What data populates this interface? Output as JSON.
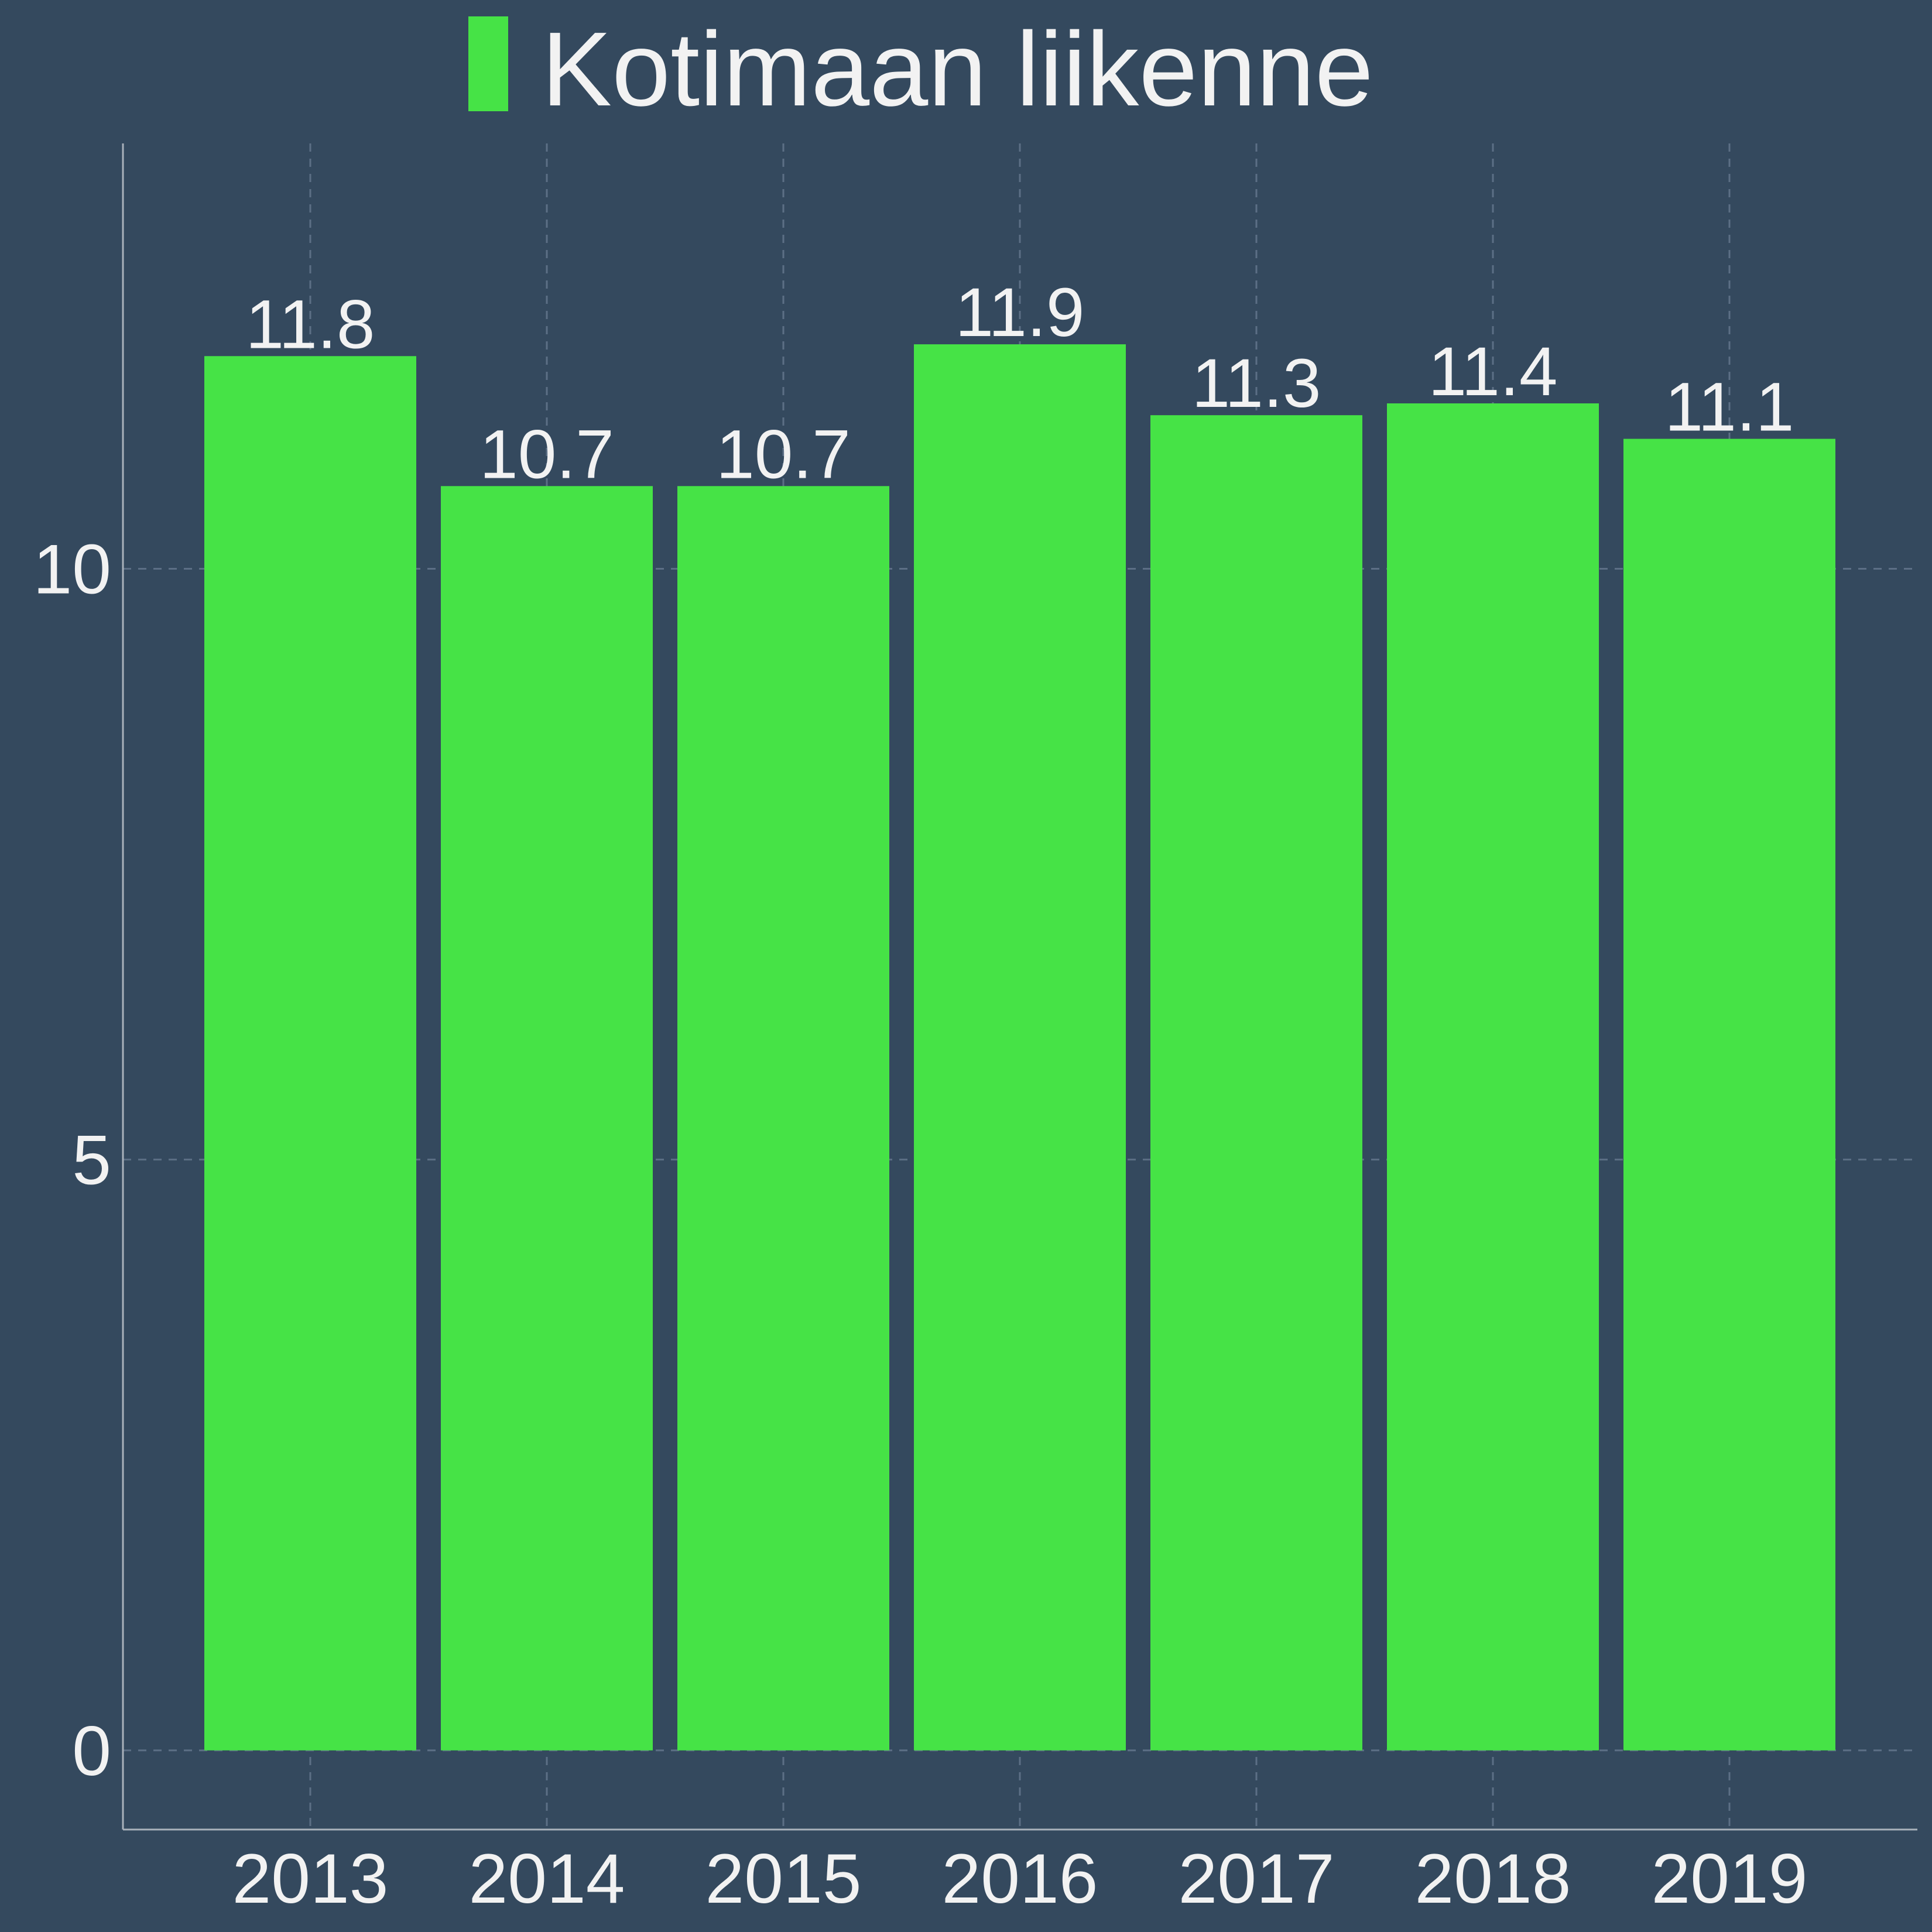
{
  "chart_data": {
    "type": "bar",
    "categories": [
      "2013",
      "2014",
      "2015",
      "2016",
      "2017",
      "2018",
      "2019"
    ],
    "series": [
      {
        "name": "Kotimaan liikenne",
        "values": [
          11.8,
          10.7,
          10.7,
          11.9,
          11.3,
          11.4,
          11.1
        ],
        "color": "#46e346"
      }
    ],
    "value_labels": [
      "11.8",
      "10.7",
      "10.7",
      "11.9",
      "11.3",
      "11.4",
      "11.1"
    ],
    "y_ticks": [
      0,
      5,
      10
    ],
    "y_tick_labels": [
      "0",
      "5",
      "10"
    ],
    "ylim": [
      -0.67,
      13.6
    ],
    "grid": true,
    "legend_position": "top-center",
    "colors": {
      "background": "#34495e",
      "text": "#f2f2f2",
      "grid": "#5c6f85",
      "axis": "#a9b1bb"
    }
  }
}
